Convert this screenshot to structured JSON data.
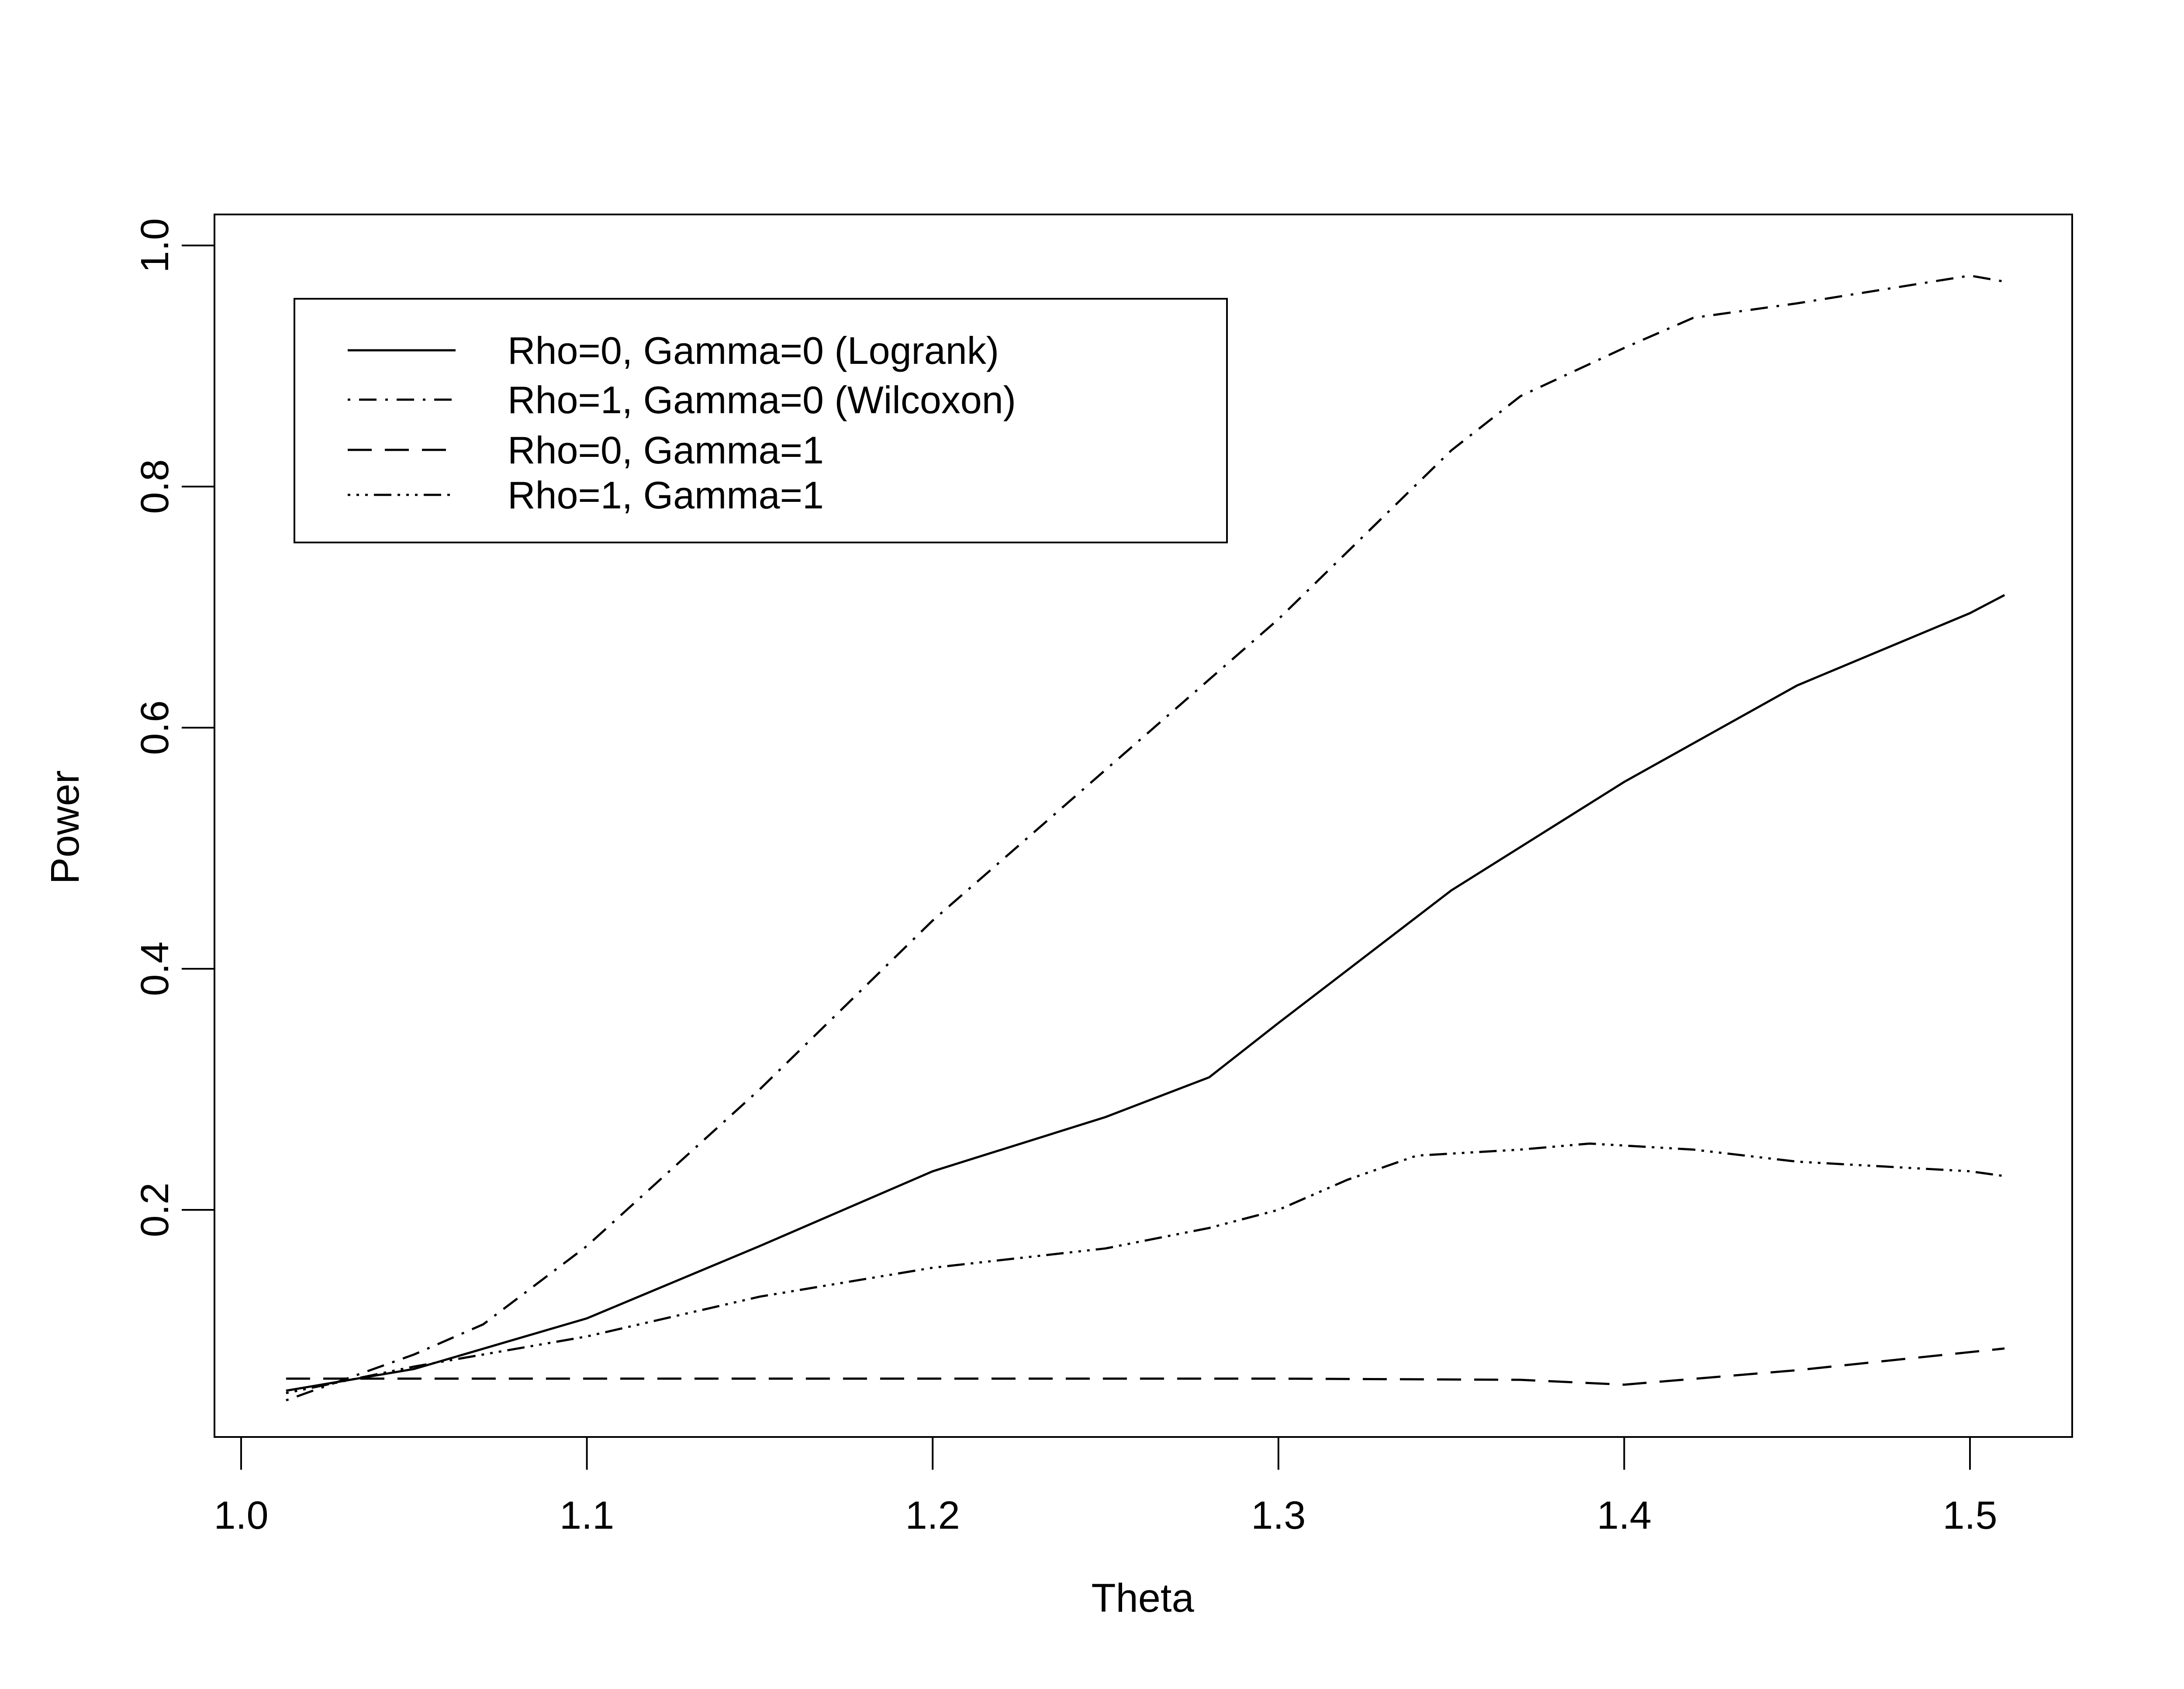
{
  "chart_data": {
    "type": "line",
    "title": "",
    "xlabel": "Theta",
    "ylabel": "Power",
    "xlim": [
      1.0,
      1.52
    ],
    "ylim": [
      0.0,
      1.0
    ],
    "xticks": [
      "1.0",
      "1.1",
      "1.2",
      "1.3",
      "1.4",
      "1.5"
    ],
    "yticks": [
      "0.2",
      "0.4",
      "0.6",
      "0.8",
      "1.0"
    ],
    "grid": false,
    "legend_position": "top-left",
    "series": [
      {
        "name": "Rho=0, Gamma=0 (Logrank)",
        "dash": "solid",
        "x": [
          1.013,
          1.05,
          1.1,
          1.15,
          1.2,
          1.25,
          1.28,
          1.3,
          1.35,
          1.4,
          1.45,
          1.5,
          1.51
        ],
        "y": [
          0.05,
          0.068,
          0.11,
          0.17,
          0.232,
          0.277,
          0.31,
          0.355,
          0.465,
          0.555,
          0.635,
          0.695,
          0.71
        ]
      },
      {
        "name": "Rho=1, Gamma=0 (Wilcoxon)",
        "dash": "dotdash",
        "x": [
          1.013,
          1.05,
          1.07,
          1.1,
          1.15,
          1.2,
          1.25,
          1.3,
          1.35,
          1.37,
          1.4,
          1.42,
          1.45,
          1.5,
          1.51
        ],
        "y": [
          0.042,
          0.08,
          0.105,
          0.17,
          0.3,
          0.44,
          0.565,
          0.69,
          0.83,
          0.875,
          0.915,
          0.94,
          0.952,
          0.975,
          0.97
        ]
      },
      {
        "name": "Rho=0, Gamma=1",
        "dash": "longdash",
        "x": [
          1.013,
          1.1,
          1.2,
          1.3,
          1.37,
          1.4,
          1.45,
          1.5,
          1.51
        ],
        "y": [
          0.06,
          0.06,
          0.06,
          0.06,
          0.059,
          0.055,
          0.067,
          0.082,
          0.085
        ]
      },
      {
        "name": "Rho=1, Gamma=1",
        "dash": "twodash-dots",
        "x": [
          1.013,
          1.05,
          1.1,
          1.15,
          1.2,
          1.25,
          1.28,
          1.3,
          1.32,
          1.34,
          1.37,
          1.39,
          1.42,
          1.45,
          1.5,
          1.51
        ],
        "y": [
          0.048,
          0.07,
          0.095,
          0.128,
          0.152,
          0.168,
          0.185,
          0.2,
          0.225,
          0.245,
          0.25,
          0.255,
          0.25,
          0.24,
          0.232,
          0.228
        ]
      }
    ]
  }
}
